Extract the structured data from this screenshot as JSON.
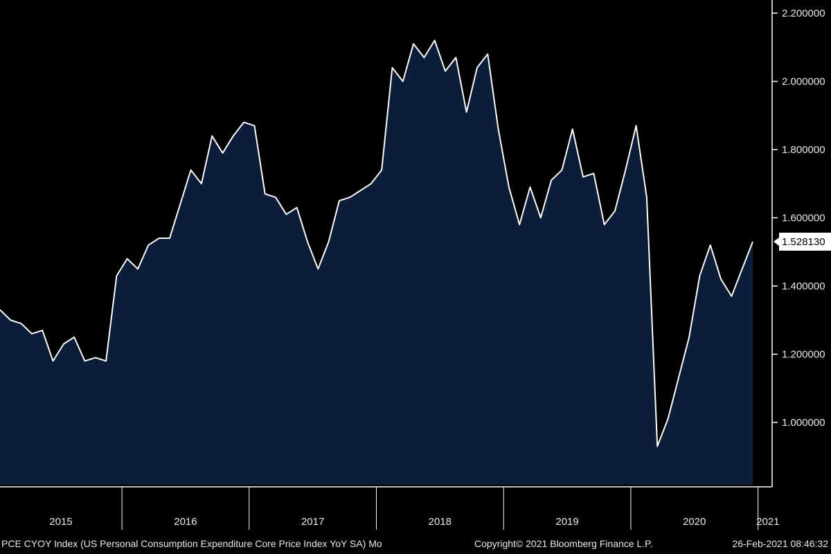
{
  "chart_data": {
    "type": "area",
    "series": [
      {
        "values": [
          1.33,
          1.3,
          1.29,
          1.26,
          1.27,
          1.18,
          1.23,
          1.25,
          1.18,
          1.19,
          1.18,
          1.43,
          1.48,
          1.45,
          1.52,
          1.54,
          1.54,
          1.64,
          1.74,
          1.7,
          1.84,
          1.79,
          1.84,
          1.88,
          1.87,
          1.67,
          1.66,
          1.61,
          1.63,
          1.53,
          1.45,
          1.53,
          1.65,
          1.66,
          1.68,
          1.7,
          1.74,
          2.04,
          2.0,
          2.11,
          2.07,
          2.12,
          2.03,
          2.07,
          1.91,
          2.04,
          2.08,
          1.86,
          1.69,
          1.58,
          1.69,
          1.6,
          1.71,
          1.74,
          1.86,
          1.72,
          1.73,
          1.58,
          1.62,
          1.74,
          1.87,
          1.66,
          0.93,
          1.01,
          1.13,
          1.25,
          1.43,
          1.52,
          1.42,
          1.37,
          1.45,
          1.53
        ]
      }
    ],
    "x_start": "2015-01",
    "x_end": "2020-12",
    "year_labels": [
      "2015",
      "2016",
      "2017",
      "2018",
      "2019",
      "2020",
      "2021"
    ],
    "y_ticks": [
      "2.200000",
      "2.000000",
      "1.800000",
      "1.600000",
      "1.400000",
      "1.200000",
      "1.000000"
    ],
    "y_axis_side": "right",
    "last_value_label": "1.528130",
    "grid": false,
    "colors": {
      "line": "#ffffff",
      "fill": "#0b1d38",
      "background": "#000000",
      "axis": "#ffffff"
    }
  },
  "footer": {
    "left": "PCE CYOY Index (US Personal Consumption Expenditure Core Price Index YoY SA)  Mo",
    "center": "Copyright© 2021 Bloomberg Finance L.P.",
    "right": "26-Feb-2021 08:46:32"
  }
}
